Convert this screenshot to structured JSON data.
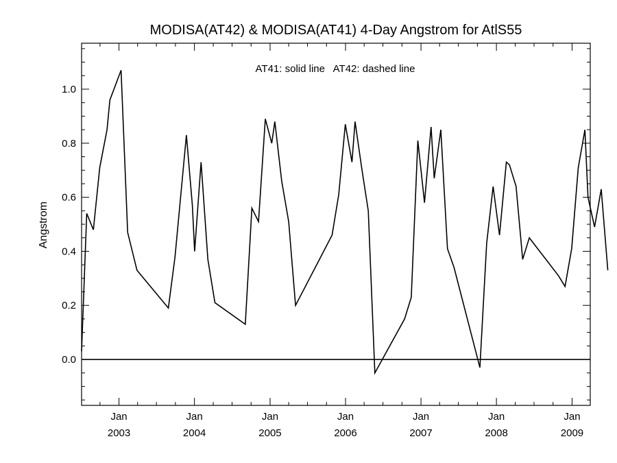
{
  "chart_data": {
    "type": "line",
    "title": "MODISA(AT42) & MODISA(AT41) 4-Day Angstrom for AtlS55",
    "annotation": "AT41: solid line   AT42: dashed line",
    "ylabel": "Angstrom",
    "xlabel": "",
    "xlim": [
      "2002-07-04",
      "2009-03-30"
    ],
    "ylim": [
      -0.17,
      1.17
    ],
    "yticks": [
      0.0,
      0.2,
      0.4,
      0.6,
      0.8,
      1.0
    ],
    "ytick_labels": [
      "0.0",
      "0.2",
      "0.4",
      "0.6",
      "0.8",
      "1.0"
    ],
    "xticks": [
      {
        "date": "2003-01-01",
        "month": "Jan",
        "year": "2003"
      },
      {
        "date": "2004-01-01",
        "month": "Jan",
        "year": "2004"
      },
      {
        "date": "2005-01-01",
        "month": "Jan",
        "year": "2005"
      },
      {
        "date": "2006-01-01",
        "month": "Jan",
        "year": "2006"
      },
      {
        "date": "2007-01-01",
        "month": "Jan",
        "year": "2007"
      },
      {
        "date": "2008-01-01",
        "month": "Jan",
        "year": "2008"
      },
      {
        "date": "2009-01-01",
        "month": "Jan",
        "year": "2009"
      }
    ],
    "reference_line": 0.0,
    "grid": false,
    "series": [
      {
        "style": "solid",
        "color": "#000000",
        "points": [
          {
            "x": "2002-07-04",
            "y": 0.03
          },
          {
            "x": "2002-07-29",
            "y": 0.54
          },
          {
            "x": "2002-08-30",
            "y": 0.48
          },
          {
            "x": "2002-09-30",
            "y": 0.71
          },
          {
            "x": "2002-11-04",
            "y": 0.85
          },
          {
            "x": "2002-11-18",
            "y": 0.96
          },
          {
            "x": "2003-01-11",
            "y": 1.07
          },
          {
            "x": "2003-02-12",
            "y": 0.47
          },
          {
            "x": "2003-03-29",
            "y": 0.33
          },
          {
            "x": "2003-08-28",
            "y": 0.19
          },
          {
            "x": "2003-09-29",
            "y": 0.38
          },
          {
            "x": "2003-11-23",
            "y": 0.83
          },
          {
            "x": "2003-12-22",
            "y": 0.57
          },
          {
            "x": "2004-01-02",
            "y": 0.4
          },
          {
            "x": "2004-02-02",
            "y": 0.73
          },
          {
            "x": "2004-03-06",
            "y": 0.37
          },
          {
            "x": "2004-04-09",
            "y": 0.21
          },
          {
            "x": "2004-09-03",
            "y": 0.13
          },
          {
            "x": "2004-10-05",
            "y": 0.56
          },
          {
            "x": "2004-11-06",
            "y": 0.51
          },
          {
            "x": "2004-12-09",
            "y": 0.89
          },
          {
            "x": "2005-01-09",
            "y": 0.8
          },
          {
            "x": "2005-01-24",
            "y": 0.88
          },
          {
            "x": "2005-02-26",
            "y": 0.66
          },
          {
            "x": "2005-04-01",
            "y": 0.51
          },
          {
            "x": "2005-05-04",
            "y": 0.2
          },
          {
            "x": "2005-10-28",
            "y": 0.46
          },
          {
            "x": "2005-11-29",
            "y": 0.61
          },
          {
            "x": "2005-12-31",
            "y": 0.87
          },
          {
            "x": "2006-02-01",
            "y": 0.73
          },
          {
            "x": "2006-02-16",
            "y": 0.88
          },
          {
            "x": "2006-03-20",
            "y": 0.71
          },
          {
            "x": "2006-04-21",
            "y": 0.55
          },
          {
            "x": "2006-05-23",
            "y": -0.05
          },
          {
            "x": "2006-10-14",
            "y": 0.15
          },
          {
            "x": "2006-11-15",
            "y": 0.23
          },
          {
            "x": "2006-12-17",
            "y": 0.81
          },
          {
            "x": "2007-01-18",
            "y": 0.58
          },
          {
            "x": "2007-02-19",
            "y": 0.86
          },
          {
            "x": "2007-03-06",
            "y": 0.67
          },
          {
            "x": "2007-04-07",
            "y": 0.85
          },
          {
            "x": "2007-05-09",
            "y": 0.41
          },
          {
            "x": "2007-06-10",
            "y": 0.34
          },
          {
            "x": "2007-10-13",
            "y": -0.03
          },
          {
            "x": "2007-11-15",
            "y": 0.43
          },
          {
            "x": "2007-12-16",
            "y": 0.64
          },
          {
            "x": "2008-01-16",
            "y": 0.46
          },
          {
            "x": "2008-02-18",
            "y": 0.73
          },
          {
            "x": "2008-03-04",
            "y": 0.72
          },
          {
            "x": "2008-04-05",
            "y": 0.64
          },
          {
            "x": "2008-05-07",
            "y": 0.37
          },
          {
            "x": "2008-06-08",
            "y": 0.45
          },
          {
            "x": "2008-10-27",
            "y": 0.31
          },
          {
            "x": "2008-11-28",
            "y": 0.27
          },
          {
            "x": "2008-12-30",
            "y": 0.41
          },
          {
            "x": "2009-01-31",
            "y": 0.71
          },
          {
            "x": "2009-03-04",
            "y": 0.85
          },
          {
            "x": "2009-03-19",
            "y": 0.6
          },
          {
            "x": "2009-04-20",
            "y": 0.49
          },
          {
            "x": "2009-05-22",
            "y": 0.63
          },
          {
            "x": "2009-06-23",
            "y": 0.33
          }
        ]
      }
    ]
  }
}
